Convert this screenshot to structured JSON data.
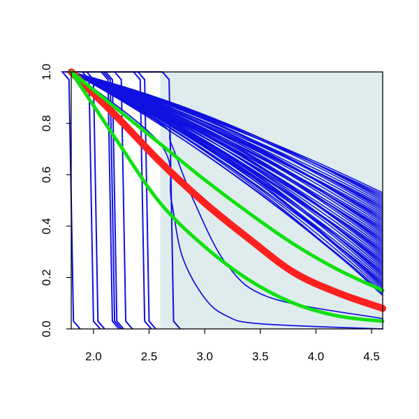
{
  "chart_data": {
    "type": "line",
    "title": "",
    "xlabel": "",
    "ylabel": "",
    "xlim": [
      1.8,
      4.6
    ],
    "ylim": [
      0.0,
      1.0
    ],
    "x_ticks": [
      "2.0",
      "2.5",
      "3.0",
      "3.5",
      "4.0",
      "4.5"
    ],
    "y_ticks": [
      "0.0",
      "0.2",
      "0.4",
      "0.6",
      "0.8",
      "1.0"
    ],
    "grid": false,
    "legend": "none",
    "shaded_region": {
      "x_from": 2.6,
      "x_to": 4.6,
      "color": "#dfeced"
    },
    "colors": {
      "blue": "#1010e0",
      "red": "#ff2020",
      "green": "#10e010",
      "axis": "#000000"
    },
    "series": [
      {
        "color": "blue",
        "kind": "bundle",
        "count": 60,
        "x": [
          1.8,
          4.6
        ],
        "y_start": 1.0,
        "y_end_range": [
          0.13,
          0.53
        ]
      },
      {
        "color": "blue",
        "kind": "step",
        "x_drop": [
          1.8,
          1.98,
          2.02,
          2.15,
          2.17,
          2.19,
          2.27,
          2.44,
          2.48,
          2.7
        ]
      },
      {
        "color": "blue",
        "kind": "curve",
        "x": [
          1.8,
          2.6,
          2.7,
          2.9,
          3.2,
          3.6,
          4.6
        ],
        "y": [
          1.0,
          0.8,
          0.72,
          0.5,
          0.25,
          0.12,
          0.04
        ]
      },
      {
        "color": "blue",
        "kind": "curve",
        "x": [
          1.8,
          2.6,
          2.7,
          2.8,
          3.0,
          3.2,
          3.5,
          4.6
        ],
        "y": [
          1.0,
          0.72,
          0.5,
          0.28,
          0.12,
          0.05,
          0.02,
          0.0
        ]
      },
      {
        "color": "red",
        "kind": "band",
        "x": [
          1.8,
          2.2,
          2.6,
          3.0,
          3.4,
          3.8,
          4.2,
          4.6
        ],
        "y": [
          1.0,
          0.83,
          0.65,
          0.49,
          0.35,
          0.22,
          0.14,
          0.08
        ]
      },
      {
        "color": "green",
        "kind": "curve",
        "x": [
          1.8,
          2.2,
          2.6,
          3.0,
          3.4,
          3.8,
          4.2,
          4.6
        ],
        "y": [
          1.0,
          0.86,
          0.72,
          0.58,
          0.45,
          0.33,
          0.23,
          0.15
        ]
      },
      {
        "color": "green",
        "kind": "curve",
        "x": [
          1.8,
          2.2,
          2.6,
          3.0,
          3.4,
          3.8,
          4.2,
          4.6
        ],
        "y": [
          1.0,
          0.74,
          0.49,
          0.32,
          0.19,
          0.1,
          0.05,
          0.03
        ]
      }
    ]
  }
}
